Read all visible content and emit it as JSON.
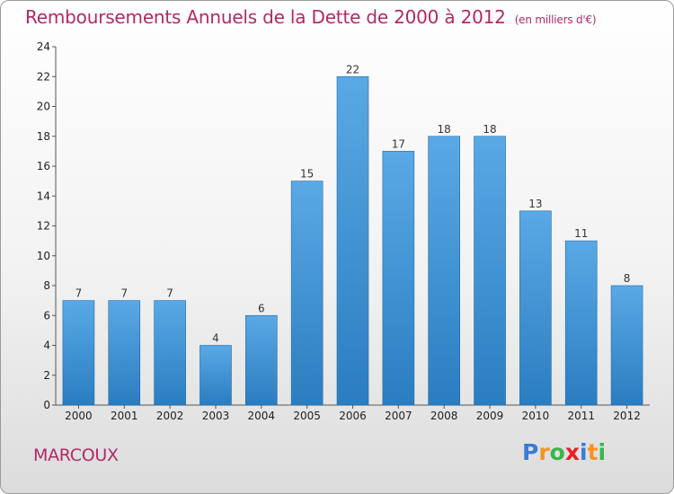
{
  "title": "Remboursements Annuels de la Dette de 2000 à 2012",
  "subtitle": "(en milliers d'€)",
  "commune": "MARCOUX",
  "logo": {
    "text": "Proxiti",
    "letters": [
      {
        "ch": "P",
        "color": "#3a7bd5"
      },
      {
        "ch": "r",
        "color": "#f7931e"
      },
      {
        "ch": "o",
        "color": "#39b54a"
      },
      {
        "ch": "x",
        "color": "#ed1c24"
      },
      {
        "ch": "i",
        "color": "#3a7bd5"
      },
      {
        "ch": "t",
        "color": "#f7931e"
      },
      {
        "ch": "i",
        "color": "#39b54a"
      }
    ]
  },
  "colors": {
    "bar_top": "#5aa9e6",
    "bar_bottom": "#2a7dc0",
    "title": "#b02a66"
  },
  "chart_data": {
    "type": "bar",
    "title": "Remboursements Annuels de la Dette de 2000 à 2012",
    "subtitle": "(en milliers d'€)",
    "categories": [
      "2000",
      "2001",
      "2002",
      "2003",
      "2004",
      "2005",
      "2006",
      "2007",
      "2008",
      "2009",
      "2010",
      "2011",
      "2012"
    ],
    "values": [
      7,
      7,
      7,
      4,
      6,
      15,
      22,
      17,
      18,
      18,
      13,
      11,
      8
    ],
    "ylim": [
      0,
      24
    ],
    "yticks": [
      0,
      2,
      4,
      6,
      8,
      10,
      12,
      14,
      16,
      18,
      20,
      22,
      24
    ],
    "grid": false,
    "legend": "none"
  }
}
